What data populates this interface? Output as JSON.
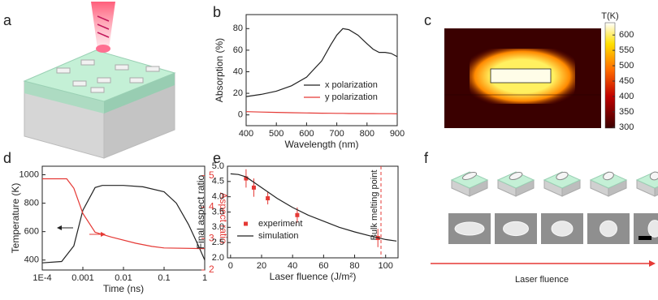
{
  "panel_labels": [
    "a",
    "b",
    "c",
    "d",
    "e",
    "f"
  ],
  "chart_data": [
    {
      "type": "line",
      "xlabel": "Wavelength (nm)",
      "ylabel": "Absorption (%)",
      "x": [
        400,
        450,
        500,
        550,
        600,
        650,
        680,
        700,
        720,
        740,
        770,
        800,
        820,
        840,
        860,
        880,
        900
      ],
      "xlim": [
        400,
        900
      ],
      "xticks": [
        400,
        500,
        600,
        700,
        800,
        900
      ],
      "ylim": [
        -10,
        93
      ],
      "yticks": [
        0,
        20,
        40,
        60,
        80
      ],
      "legend": "lower right",
      "series": [
        {
          "name": "x polarization",
          "color": "#222222",
          "values": [
            17,
            19,
            22,
            27,
            35,
            50,
            65,
            74,
            80,
            79,
            74,
            66,
            61,
            58,
            58,
            57,
            54
          ]
        },
        {
          "name": "y polarization",
          "color": "#e53935",
          "values": [
            3,
            2.6,
            2.3,
            2,
            1.8,
            1.6,
            1.5,
            1.4,
            1.4,
            1.3,
            1.3,
            1.2,
            1.2,
            1.1,
            1.1,
            1.1,
            1
          ]
        }
      ]
    },
    {
      "type": "heatmap",
      "colorbar_label": "T(K)",
      "clim": [
        297,
        640
      ],
      "cticks": [
        300,
        350,
        400,
        450,
        500,
        550,
        600
      ]
    },
    {
      "type": "line",
      "xlabel": "Time (ns)",
      "ylabel": "Temperature (K)",
      "y2label": "Aspect ratio",
      "y2color": "#e53935",
      "xlog": true,
      "xlim": [
        0.0001,
        1
      ],
      "xticks": [
        {
          "value": 0.0001,
          "label": "1E-4"
        },
        0.001,
        0.01,
        0.1,
        1
      ],
      "ylim": [
        330,
        1060
      ],
      "yticks": [
        400,
        600,
        800,
        1000
      ],
      "y2lim": [
        2,
        5.3
      ],
      "y2ticks": [
        2,
        3,
        4,
        5
      ],
      "series": [
        {
          "color": "#222222",
          "x": [
            0.0001,
            0.0003,
            0.0006,
            0.001,
            0.002,
            0.003,
            0.01,
            0.03,
            0.1,
            0.2,
            0.4,
            0.7,
            1
          ],
          "values": [
            380,
            390,
            500,
            750,
            910,
            925,
            925,
            915,
            880,
            800,
            650,
            500,
            400
          ]
        },
        {
          "color": "#e53935",
          "axis": "y2",
          "x": [
            0.0001,
            0.0004,
            0.0006,
            0.001,
            0.002,
            0.005,
            0.02,
            0.05,
            0.1,
            1
          ],
          "values": [
            4.9,
            4.9,
            4.6,
            3.8,
            3.2,
            3.05,
            2.85,
            2.75,
            2.7,
            2.68
          ]
        }
      ]
    },
    {
      "type": "line",
      "xlabel": "Laser fluence (J/m²)",
      "ylabel": "Final aspect ratio",
      "xlim": [
        -2,
        108
      ],
      "xticks": [
        0,
        20,
        40,
        60,
        80,
        100
      ],
      "ylim": [
        2,
        5
      ],
      "yticks": [
        {
          "value": 2,
          "label": "2.0"
        },
        2.5,
        {
          "value": 3,
          "label": "3.0"
        },
        3.5,
        {
          "value": 4,
          "label": "4.0"
        },
        4.5,
        {
          "value": 5,
          "label": "5.0"
        }
      ],
      "legend": "lower left",
      "vline": {
        "x": 97,
        "label": "Bulk melting point"
      },
      "series": [
        {
          "name": "experiment",
          "style": "scatter",
          "color": "#e53935",
          "x": [
            10,
            15,
            24,
            43,
            95
          ],
          "values": [
            4.6,
            4.3,
            3.95,
            3.4,
            2.65
          ],
          "errors": [
            0.3,
            0.3,
            0.2,
            0.25,
            0.3
          ]
        },
        {
          "name": "simulation",
          "color": "#222222",
          "x": [
            0,
            5,
            10,
            20,
            30,
            40,
            50,
            60,
            70,
            80,
            90,
            100,
            107
          ],
          "values": [
            4.75,
            4.73,
            4.65,
            4.3,
            3.95,
            3.65,
            3.4,
            3.2,
            3.0,
            2.85,
            2.72,
            2.6,
            2.55
          ]
        }
      ]
    }
  ],
  "panel_f": {
    "axis_label": "Laser fluence"
  }
}
